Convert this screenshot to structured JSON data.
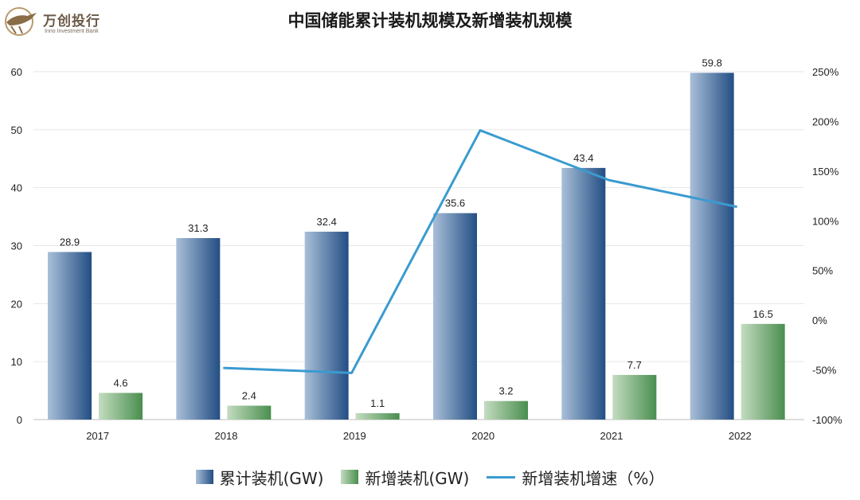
{
  "logo": {
    "name": "万创投行",
    "subtitle": "Inno Investment Bank",
    "icon": "horse-logo"
  },
  "chart_data": {
    "type": "bar",
    "title": "中国储能累计装机规模及新增装机规模",
    "categories": [
      "2017",
      "2018",
      "2019",
      "2020",
      "2021",
      "2022"
    ],
    "series": [
      {
        "name": "累计装机(GW)",
        "type": "bar",
        "axis": "left",
        "color": "#2f5a8f",
        "values": [
          28.9,
          31.3,
          32.4,
          35.6,
          43.4,
          59.8
        ]
      },
      {
        "name": "新增装机(GW)",
        "type": "bar",
        "axis": "left",
        "color": "#5b9a5b",
        "values": [
          4.6,
          2.4,
          1.1,
          3.2,
          7.7,
          16.5
        ]
      },
      {
        "name": "新增装机增速（%）",
        "type": "line",
        "axis": "right",
        "color": "#3a9bd0",
        "values": [
          null,
          -48,
          -53,
          191,
          141,
          114
        ]
      }
    ],
    "ylim": [
      0,
      60
    ],
    "yticks": [
      "0",
      "10",
      "20",
      "30",
      "40",
      "50",
      "60"
    ],
    "y2lim": [
      -100,
      250
    ],
    "y2ticks": [
      "-100%",
      "-50%",
      "0%",
      "50%",
      "100%",
      "150%",
      "200%",
      "250%"
    ],
    "grid": true,
    "legend": "bottom"
  }
}
